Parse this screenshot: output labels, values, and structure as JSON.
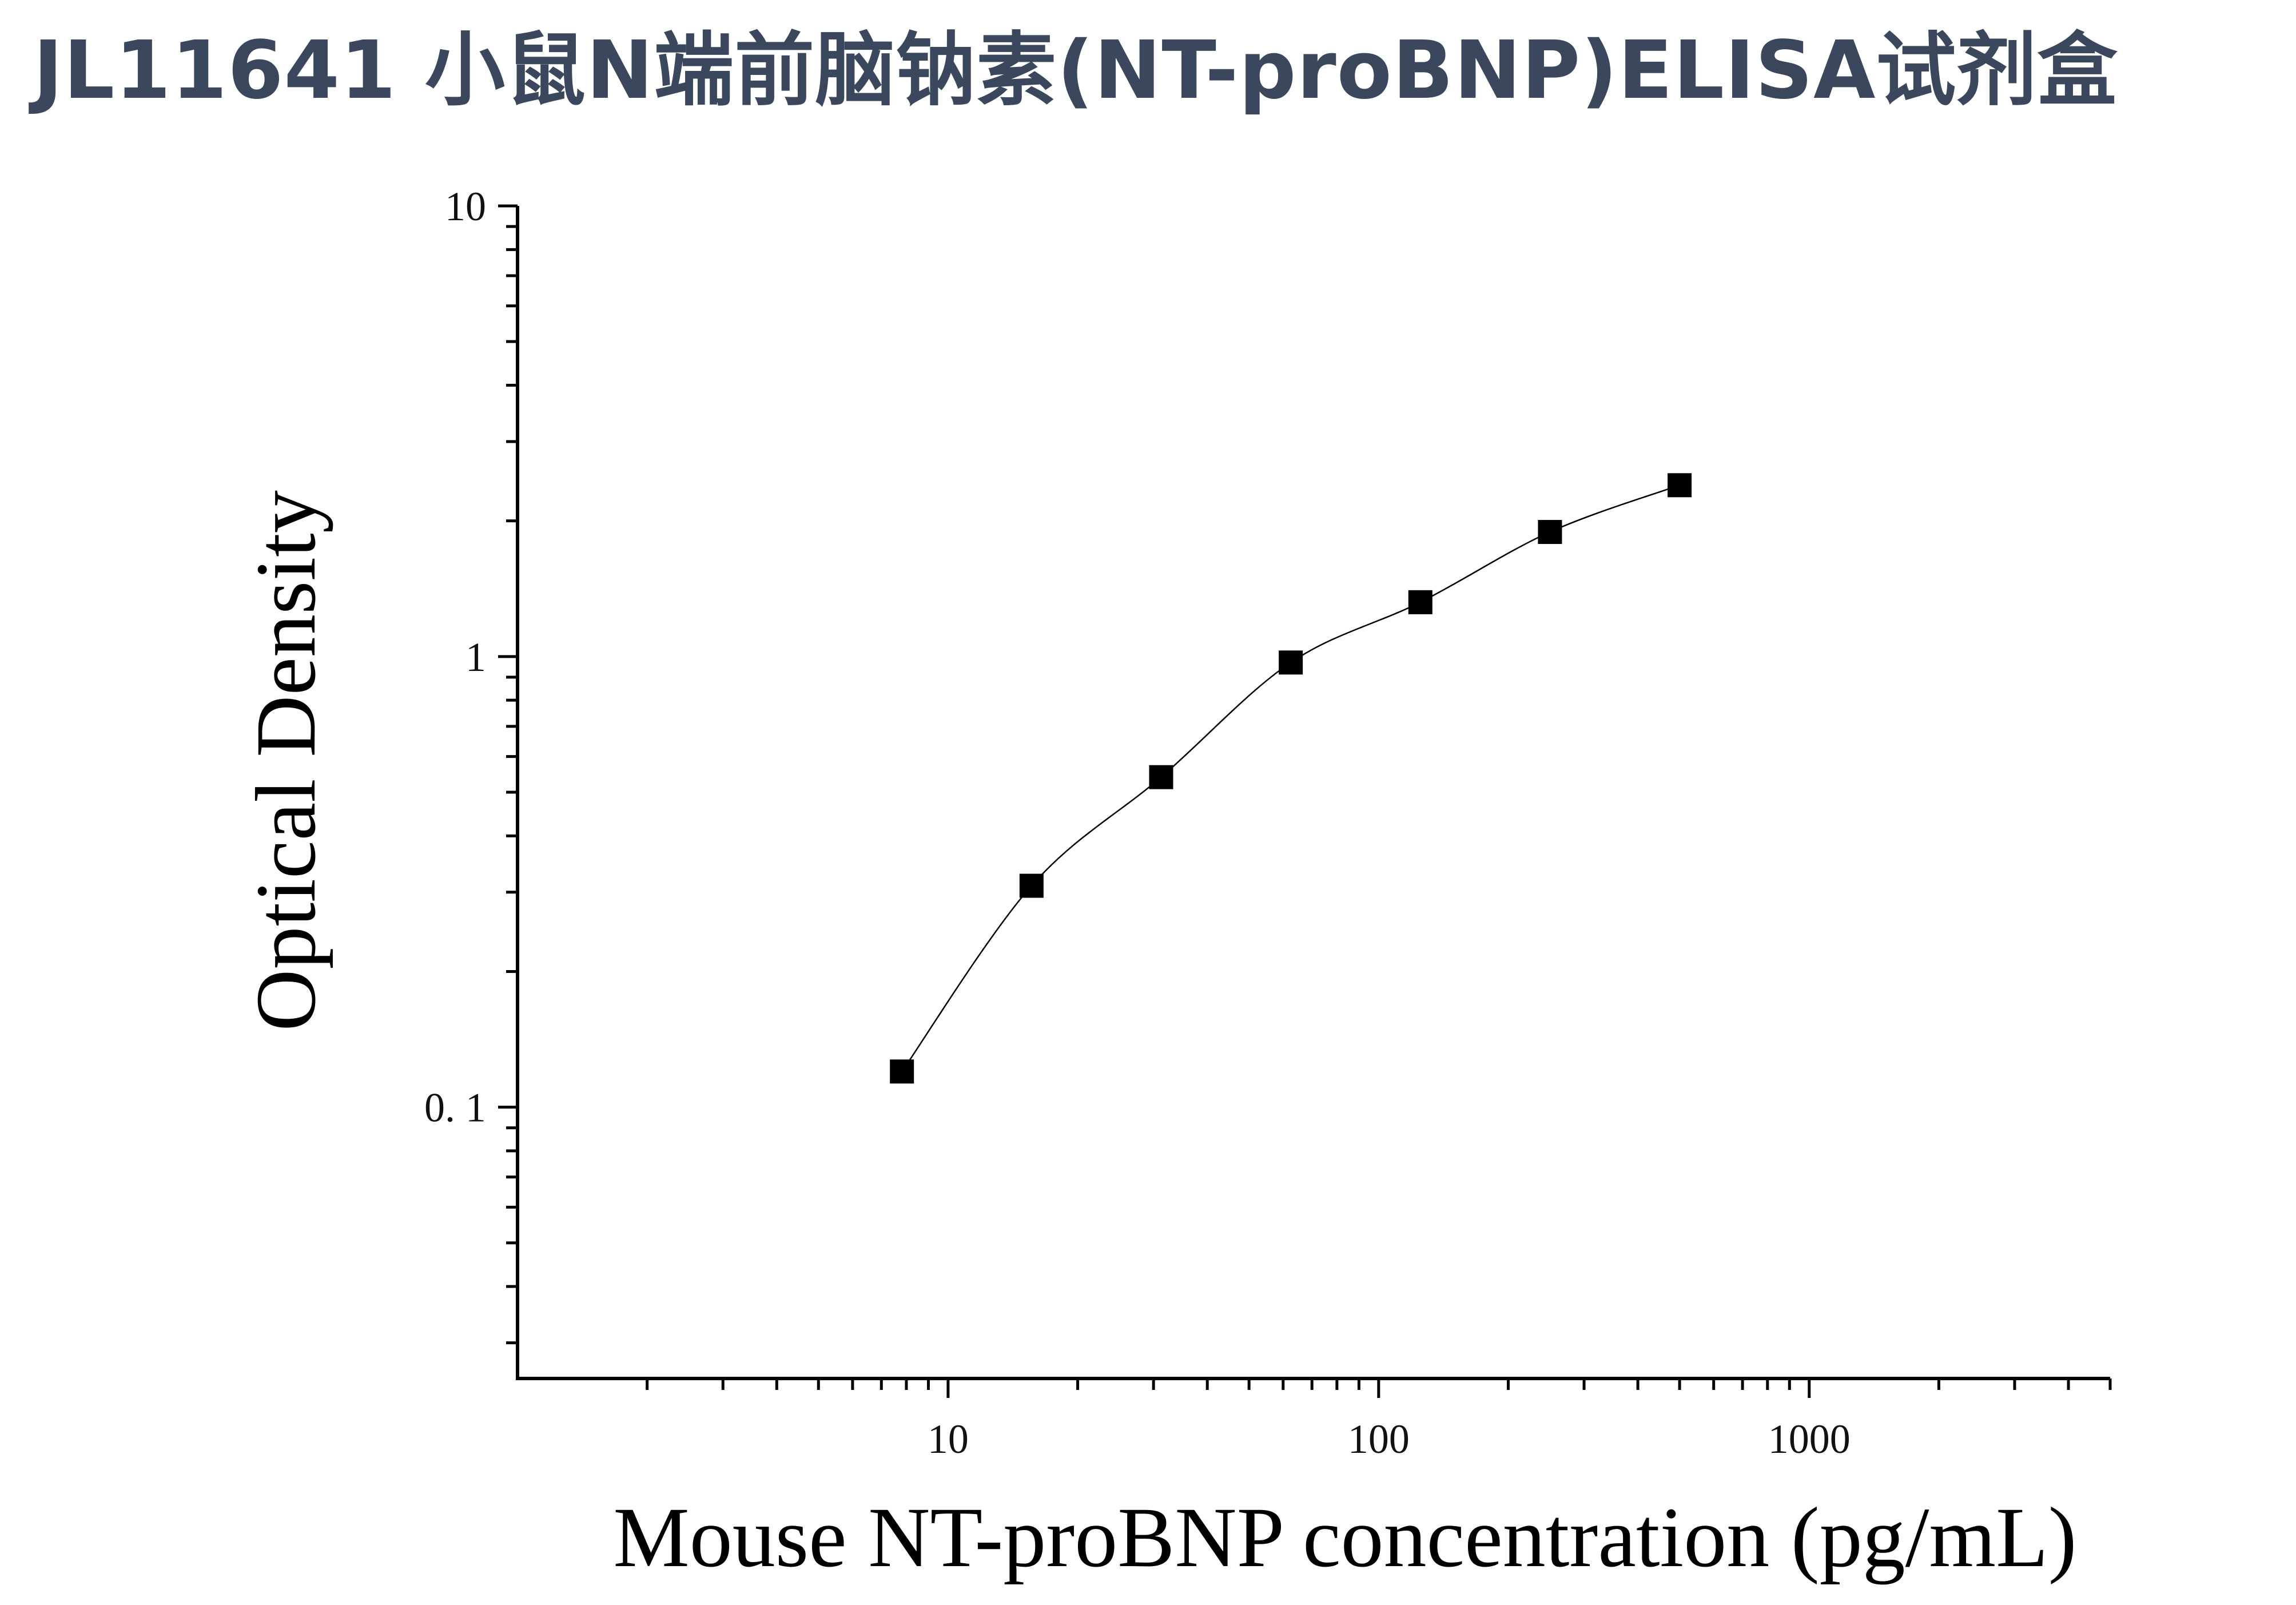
{
  "title": "JL11641 小鼠N端前脑钠素(NT-proBNP)ELISA试剂盒",
  "colors": {
    "title": "#3b475d",
    "marker": "#000000",
    "line": "#000000"
  },
  "chart_data": {
    "type": "scatter",
    "xlabel": "Mouse NT-proBNP concentration (pg/mL)",
    "ylabel": "Optical Density",
    "xscale": "log",
    "yscale": "log",
    "xlim": [
      1,
      5000
    ],
    "ylim": [
      0.025,
      10
    ],
    "xticks": [
      {
        "value": 10,
        "label": "10"
      },
      {
        "value": 100,
        "label": "100"
      },
      {
        "value": 1000,
        "label": "1000"
      }
    ],
    "yticks": [
      {
        "value": 0.1,
        "label": "0. 1"
      },
      {
        "value": 1,
        "label": "1"
      },
      {
        "value": 10,
        "label": "10"
      }
    ],
    "grid": false,
    "legend": "none",
    "series": [
      {
        "marker": "square",
        "fit_line": true,
        "points": [
          {
            "x": 7.8125,
            "y": 0.12
          },
          {
            "x": 15.625,
            "y": 0.31
          },
          {
            "x": 31.25,
            "y": 0.54
          },
          {
            "x": 62.5,
            "y": 0.97
          },
          {
            "x": 125,
            "y": 1.32
          },
          {
            "x": 250,
            "y": 1.89
          },
          {
            "x": 500,
            "y": 2.4
          }
        ]
      }
    ]
  }
}
